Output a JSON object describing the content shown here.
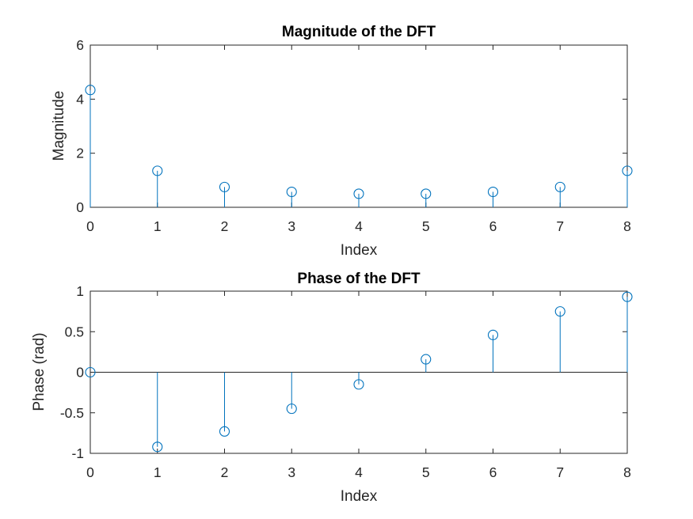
{
  "chart_data": [
    {
      "type": "stem",
      "title": "Magnitude of the DFT",
      "xlabel": "Index",
      "ylabel": "Magnitude",
      "x": [
        0,
        1,
        2,
        3,
        4,
        5,
        6,
        7,
        8
      ],
      "y": [
        4.34,
        1.35,
        0.75,
        0.57,
        0.5,
        0.5,
        0.57,
        0.75,
        1.35
      ],
      "xlim": [
        0,
        8
      ],
      "ylim": [
        0,
        6
      ],
      "xticks": [
        "0",
        "1",
        "2",
        "3",
        "4",
        "5",
        "6",
        "7",
        "8"
      ],
      "yticks": [
        "0",
        "2",
        "4",
        "6"
      ],
      "grid": false,
      "color": "#0072BD"
    },
    {
      "type": "stem",
      "title": "Phase of the DFT",
      "xlabel": "Index",
      "ylabel": "Phase (rad)",
      "x": [
        0,
        1,
        2,
        3,
        4,
        5,
        6,
        7,
        8
      ],
      "y": [
        0.0,
        -0.92,
        -0.73,
        -0.45,
        -0.15,
        0.16,
        0.46,
        0.75,
        0.93
      ],
      "xlim": [
        0,
        8
      ],
      "ylim": [
        -1,
        1
      ],
      "xticks": [
        "0",
        "1",
        "2",
        "3",
        "4",
        "5",
        "6",
        "7",
        "8"
      ],
      "yticks": [
        "-1",
        "-0.5",
        "0",
        "0.5",
        "1"
      ],
      "grid": false,
      "color": "#0072BD"
    }
  ]
}
